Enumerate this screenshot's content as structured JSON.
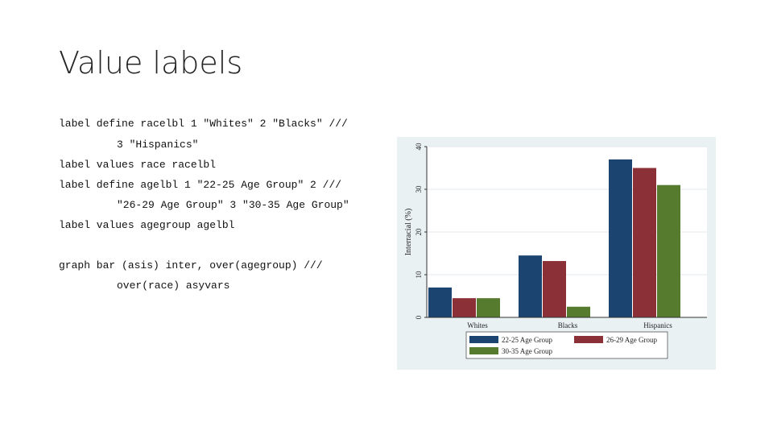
{
  "slide": {
    "title": "Value labels"
  },
  "code": [
    "label define racelbl 1 \"Whites\" 2 \"Blacks\" ///",
    "3 \"Hispanics\"",
    "label values race racelbl",
    "label define agelbl 1 \"22-25 Age Group\" 2 ///",
    "\"26-29 Age Group\" 3 \"30-35 Age Group\"",
    "label values agegroup agelbl",
    "graph bar (asis) inter, over(agegroup) ///",
    "over(race) asyvars"
  ],
  "chart_data": {
    "type": "bar",
    "categories": [
      "Whites",
      "Blacks",
      "Hispanics"
    ],
    "series": [
      {
        "name": "22-25 Age Group",
        "values": [
          7,
          14.5,
          37
        ],
        "color": "#1b4570"
      },
      {
        "name": "26-29 Age Group",
        "values": [
          4.5,
          13.2,
          35
        ],
        "color": "#8c3038"
      },
      {
        "name": "30-35 Age Group",
        "values": [
          4.5,
          2.5,
          31
        ],
        "color": "#577b2e"
      }
    ],
    "ylabel": "Interracial (%)",
    "ylim": [
      0,
      40
    ],
    "yticks": [
      "0",
      "10",
      "20",
      "30",
      "40"
    ],
    "grid": true,
    "legend": "bottom"
  }
}
